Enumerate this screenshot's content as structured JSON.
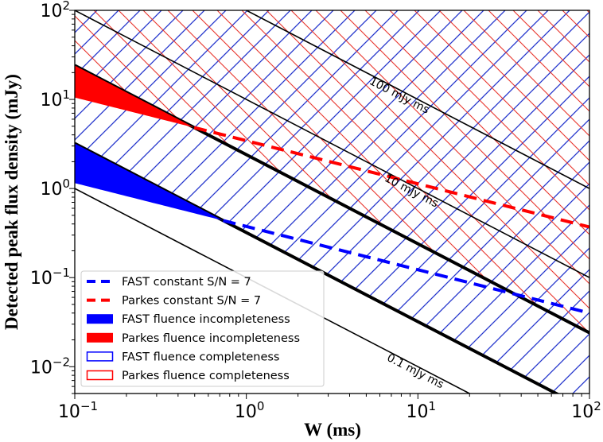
{
  "chart_data": {
    "type": "line",
    "xlabel": "W (ms)",
    "ylabel": "Detected peak flux density (mJy)",
    "xscale": "log",
    "yscale": "log",
    "xlim": [
      0.1,
      100
    ],
    "ylim": [
      0.005,
      100
    ],
    "grid": false,
    "legend_position": "lower-left",
    "x_ticks": [
      {
        "base": "10",
        "exp": "−1"
      },
      {
        "base": "10",
        "exp": "0"
      },
      {
        "base": "10",
        "exp": "1"
      },
      {
        "base": "10",
        "exp": "2"
      }
    ],
    "y_ticks": [
      {
        "base": "10",
        "exp": "−2"
      },
      {
        "base": "10",
        "exp": "−1"
      },
      {
        "base": "10",
        "exp": "0"
      },
      {
        "base": "10",
        "exp": "1"
      },
      {
        "base": "10",
        "exp": "2"
      }
    ],
    "fluence_lines": [
      {
        "fluence_mJy_ms": 0.1,
        "label": "0.1 mJy ms",
        "style": "thin"
      },
      {
        "fluence_mJy_ms": 0.32,
        "label": "",
        "style": "thick"
      },
      {
        "fluence_mJy_ms": 2.4,
        "label": "",
        "style": "thick"
      },
      {
        "fluence_mJy_ms": 10,
        "label": "10 mJy ms",
        "style": "thin"
      },
      {
        "fluence_mJy_ms": 100,
        "label": "100 mJy ms",
        "style": "thin"
      }
    ],
    "series": [
      {
        "name": "FAST constant S/N = 7",
        "color": "#0000ff",
        "style": "dashed",
        "points": [
          [
            0.1,
            1.15
          ],
          [
            100,
            0.04
          ]
        ]
      },
      {
        "name": "Parkes constant S/N = 7",
        "color": "#ff0000",
        "style": "dashed",
        "points": [
          [
            0.1,
            10.5
          ],
          [
            100,
            0.37
          ]
        ]
      }
    ],
    "regions": [
      {
        "name": "FAST fluence incompleteness",
        "color": "#0000ff",
        "fill": "solid",
        "between": [
          "FAST constant S/N = 7",
          0.32
        ]
      },
      {
        "name": "Parkes fluence incompleteness",
        "color": "#ff0000",
        "fill": "solid",
        "between": [
          "Parkes constant S/N = 7",
          2.4
        ]
      },
      {
        "name": "FAST fluence completeness",
        "color": "#0000ff",
        "fill": "hatch-/",
        "above_fluence": 0.32
      },
      {
        "name": "Parkes fluence completeness",
        "color": "#ff0000",
        "fill": "hatch-\\",
        "above_fluence": 2.4
      }
    ],
    "legend": [
      {
        "label": "FAST constant S/N = 7",
        "kind": "dash",
        "color": "#0000ff"
      },
      {
        "label": "Parkes constant S/N = 7",
        "kind": "dash",
        "color": "#ff0000"
      },
      {
        "label": "FAST fluence incompleteness",
        "kind": "fill",
        "color": "#0000ff"
      },
      {
        "label": "Parkes fluence incompleteness",
        "kind": "fill",
        "color": "#ff0000"
      },
      {
        "label": "FAST fluence completeness",
        "kind": "hatch",
        "color": "#0000ff"
      },
      {
        "label": "Parkes fluence completeness",
        "kind": "hatch",
        "color": "#ff0000"
      }
    ]
  }
}
